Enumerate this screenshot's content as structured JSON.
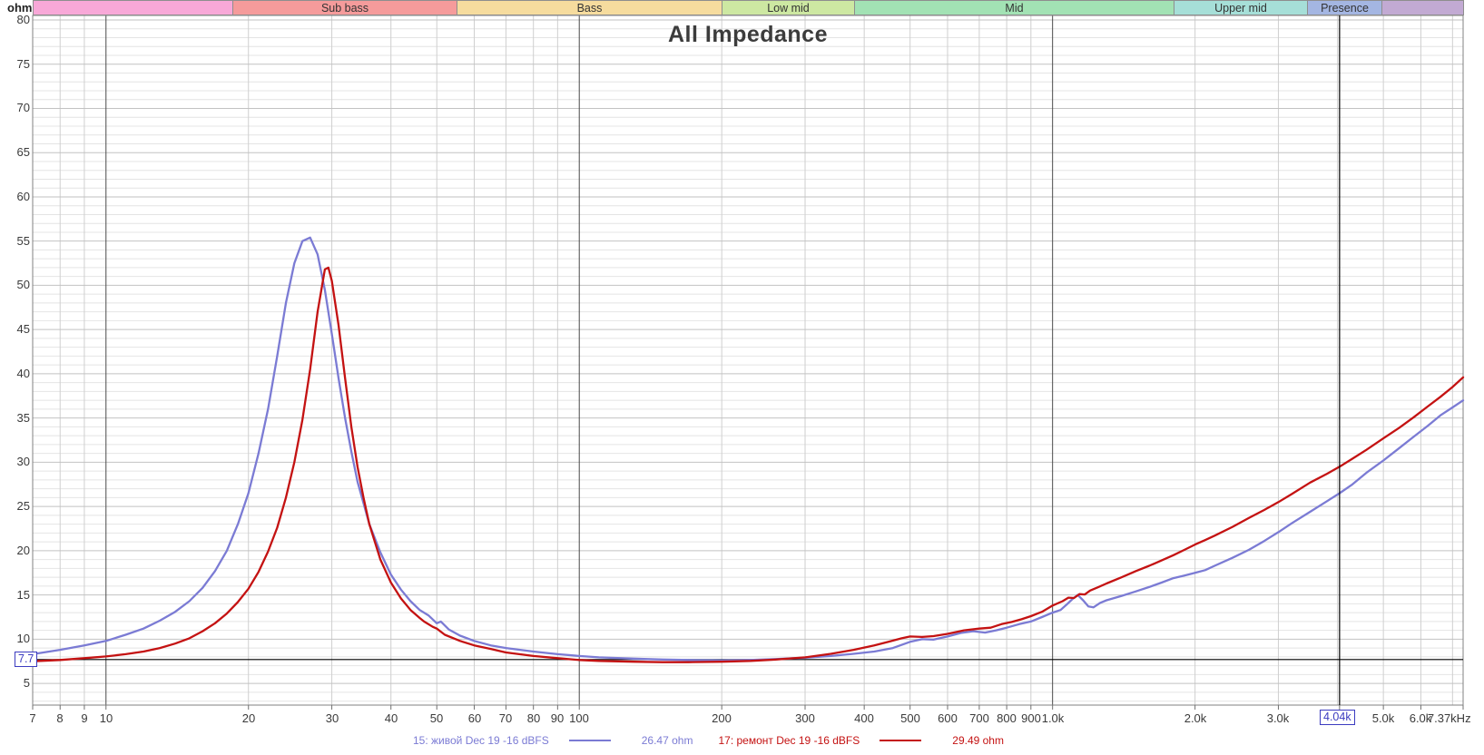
{
  "title": "All Impedance",
  "colors": {
    "series_live": "#7b7bd4",
    "series_repair": "#c41212",
    "accent_blue": "#3b3bc0",
    "cursor_line": "#000000",
    "marker_line": "#000000"
  },
  "y_axis": {
    "unit": "ohm",
    "ticks": [
      80,
      75,
      70,
      65,
      60,
      55,
      50,
      45,
      40,
      35,
      30,
      25,
      20,
      15,
      10,
      5
    ],
    "minor_step": 1,
    "major_step": 5
  },
  "x_axis": {
    "unit": "Hz",
    "ticks": [
      {
        "f": 7,
        "label": "7"
      },
      {
        "f": 8,
        "label": "8"
      },
      {
        "f": 9,
        "label": "9"
      },
      {
        "f": 10,
        "label": "10"
      },
      {
        "f": 20,
        "label": "20"
      },
      {
        "f": 30,
        "label": "30"
      },
      {
        "f": 40,
        "label": "40"
      },
      {
        "f": 50,
        "label": "50"
      },
      {
        "f": 60,
        "label": "60"
      },
      {
        "f": 70,
        "label": "70"
      },
      {
        "f": 80,
        "label": "80"
      },
      {
        "f": 90,
        "label": "90"
      },
      {
        "f": 100,
        "label": "100"
      },
      {
        "f": 200,
        "label": "200"
      },
      {
        "f": 300,
        "label": "300"
      },
      {
        "f": 400,
        "label": "400"
      },
      {
        "f": 500,
        "label": "500"
      },
      {
        "f": 600,
        "label": "600"
      },
      {
        "f": 700,
        "label": "700"
      },
      {
        "f": 800,
        "label": "800"
      },
      {
        "f": 900,
        "label": "900"
      },
      {
        "f": 1000,
        "label": "1.0k"
      },
      {
        "f": 2000,
        "label": "2.0k"
      },
      {
        "f": 3000,
        "label": "3.0k"
      },
      {
        "f": 4040,
        "label": "4.04k",
        "boxed": true
      },
      {
        "f": 5000,
        "label": "5.0k"
      },
      {
        "f": 6000,
        "label": "6.0k"
      },
      {
        "f": 7370,
        "label": "7.37kHz",
        "last": true
      }
    ],
    "minor_gridlines": [
      8,
      9,
      20,
      30,
      40,
      50,
      60,
      70,
      80,
      90,
      200,
      300,
      400,
      500,
      600,
      700,
      800,
      900,
      2000,
      3000,
      4000,
      5000,
      6000,
      7000
    ],
    "decade_gridlines": [
      10,
      100,
      1000
    ]
  },
  "bands": [
    {
      "label": "",
      "color": "#f8a8d8",
      "from": 7,
      "to": 18.5
    },
    {
      "label": "Sub bass",
      "color": "#f59b9b",
      "from": 18.5,
      "to": 55
    },
    {
      "label": "Bass",
      "color": "#f6dc9e",
      "from": 55,
      "to": 200
    },
    {
      "label": "Low mid",
      "color": "#cde8a2",
      "from": 200,
      "to": 380
    },
    {
      "label": "Mid",
      "color": "#a2e2b4",
      "from": 380,
      "to": 1800
    },
    {
      "label": "Upper mid",
      "color": "#a6dfd8",
      "from": 1800,
      "to": 3450
    },
    {
      "label": "Presence",
      "color": "#a4b6e2",
      "from": 3450,
      "to": 4950
    },
    {
      "label": "",
      "color": "#c2aad3",
      "from": 4950,
      "to": 7370
    }
  ],
  "marker": {
    "label": "7.7",
    "value": 7.7
  },
  "cursor": {
    "label": "4.04k",
    "freq": 4040
  },
  "legend": {
    "items": [
      {
        "label": "15: живой Dec 19 -16 dBFS",
        "value": "26.47 ohm",
        "color": "#7b7bd4"
      },
      {
        "label": "17: ремонт Dec 19 -16 dBFS",
        "value": "29.49 ohm",
        "color": "#c41212"
      }
    ]
  },
  "chart_data": {
    "type": "line",
    "xscale": "log",
    "title": "All Impedance",
    "xlabel": "Hz",
    "ylabel": "ohm",
    "xlim": [
      7,
      7370
    ],
    "ylim": [
      2.55,
      80.51
    ],
    "grid": true,
    "legend_position": "bottom",
    "series": [
      {
        "name": "15: живой Dec 19 -16 dBFS",
        "color": "#7b7bd4",
        "cursor_freq": 4040,
        "cursor_value": 26.47,
        "peak": {
          "freq": 27,
          "value": 55.4
        },
        "points": [
          [
            7,
            8.3
          ],
          [
            8,
            8.8
          ],
          [
            9,
            9.3
          ],
          [
            10,
            9.8
          ],
          [
            11,
            10.5
          ],
          [
            12,
            11.2
          ],
          [
            13,
            12.1
          ],
          [
            14,
            13.1
          ],
          [
            15,
            14.3
          ],
          [
            16,
            15.8
          ],
          [
            17,
            17.7
          ],
          [
            18,
            20.0
          ],
          [
            19,
            23.0
          ],
          [
            20,
            26.5
          ],
          [
            21,
            31.0
          ],
          [
            22,
            36.0
          ],
          [
            23,
            42.0
          ],
          [
            24,
            48.0
          ],
          [
            25,
            52.5
          ],
          [
            26,
            55.0
          ],
          [
            27,
            55.4
          ],
          [
            28,
            53.5
          ],
          [
            29,
            49.5
          ],
          [
            30,
            44.5
          ],
          [
            31,
            39.5
          ],
          [
            32,
            35.0
          ],
          [
            33,
            31.2
          ],
          [
            34,
            27.8
          ],
          [
            36,
            23.0
          ],
          [
            38,
            19.8
          ],
          [
            40,
            17.3
          ],
          [
            42,
            15.6
          ],
          [
            44,
            14.3
          ],
          [
            46,
            13.3
          ],
          [
            48,
            12.7
          ],
          [
            50,
            11.8
          ],
          [
            51,
            12.0
          ],
          [
            53,
            11.1
          ],
          [
            56,
            10.4
          ],
          [
            60,
            9.8
          ],
          [
            65,
            9.3
          ],
          [
            70,
            9.0
          ],
          [
            80,
            8.6
          ],
          [
            90,
            8.3
          ],
          [
            100,
            8.1
          ],
          [
            110,
            7.95
          ],
          [
            130,
            7.8
          ],
          [
            150,
            7.7
          ],
          [
            170,
            7.65
          ],
          [
            200,
            7.6
          ],
          [
            230,
            7.65
          ],
          [
            260,
            7.75
          ],
          [
            300,
            7.9
          ],
          [
            340,
            8.1
          ],
          [
            380,
            8.35
          ],
          [
            420,
            8.6
          ],
          [
            460,
            9.0
          ],
          [
            500,
            9.7
          ],
          [
            530,
            10.0
          ],
          [
            560,
            9.95
          ],
          [
            600,
            10.3
          ],
          [
            640,
            10.7
          ],
          [
            680,
            10.9
          ],
          [
            720,
            10.75
          ],
          [
            760,
            11.0
          ],
          [
            800,
            11.3
          ],
          [
            850,
            11.7
          ],
          [
            900,
            12.0
          ],
          [
            950,
            12.5
          ],
          [
            1000,
            13.0
          ],
          [
            1040,
            13.3
          ],
          [
            1070,
            13.9
          ],
          [
            1100,
            14.5
          ],
          [
            1130,
            15.0
          ],
          [
            1160,
            14.4
          ],
          [
            1190,
            13.7
          ],
          [
            1220,
            13.6
          ],
          [
            1260,
            14.1
          ],
          [
            1300,
            14.4
          ],
          [
            1400,
            14.9
          ],
          [
            1500,
            15.4
          ],
          [
            1600,
            15.9
          ],
          [
            1700,
            16.4
          ],
          [
            1800,
            16.9
          ],
          [
            1900,
            17.2
          ],
          [
            2000,
            17.5
          ],
          [
            2100,
            17.8
          ],
          [
            2200,
            18.3
          ],
          [
            2400,
            19.2
          ],
          [
            2600,
            20.1
          ],
          [
            2800,
            21.1
          ],
          [
            3000,
            22.1
          ],
          [
            3200,
            23.1
          ],
          [
            3500,
            24.4
          ],
          [
            3800,
            25.6
          ],
          [
            4040,
            26.5
          ],
          [
            4300,
            27.5
          ],
          [
            4600,
            28.8
          ],
          [
            5000,
            30.2
          ],
          [
            5400,
            31.6
          ],
          [
            5800,
            32.9
          ],
          [
            6200,
            34.1
          ],
          [
            6600,
            35.3
          ],
          [
            7000,
            36.2
          ],
          [
            7370,
            37.0
          ]
        ]
      },
      {
        "name": "17: ремонт Dec 19 -16 dBFS",
        "color": "#c41212",
        "cursor_freq": 4040,
        "cursor_value": 29.49,
        "peak": {
          "freq": 29.3,
          "value": 52.0
        },
        "points": [
          [
            7,
            7.5
          ],
          [
            8,
            7.65
          ],
          [
            9,
            7.85
          ],
          [
            10,
            8.05
          ],
          [
            11,
            8.3
          ],
          [
            12,
            8.6
          ],
          [
            13,
            9.0
          ],
          [
            14,
            9.5
          ],
          [
            15,
            10.1
          ],
          [
            16,
            10.9
          ],
          [
            17,
            11.8
          ],
          [
            18,
            12.9
          ],
          [
            19,
            14.2
          ],
          [
            20,
            15.7
          ],
          [
            21,
            17.6
          ],
          [
            22,
            19.9
          ],
          [
            23,
            22.6
          ],
          [
            24,
            26.0
          ],
          [
            25,
            30.0
          ],
          [
            26,
            34.8
          ],
          [
            27,
            40.5
          ],
          [
            28,
            47.0
          ],
          [
            29,
            51.8
          ],
          [
            29.5,
            52.0
          ],
          [
            30,
            50.5
          ],
          [
            31,
            45.5
          ],
          [
            32,
            39.5
          ],
          [
            33,
            34.0
          ],
          [
            34,
            29.5
          ],
          [
            35,
            26.0
          ],
          [
            36,
            23.0
          ],
          [
            38,
            19.0
          ],
          [
            40,
            16.4
          ],
          [
            42,
            14.6
          ],
          [
            44,
            13.3
          ],
          [
            46,
            12.4
          ],
          [
            47,
            12.0
          ],
          [
            49,
            11.4
          ],
          [
            50,
            11.2
          ],
          [
            52,
            10.5
          ],
          [
            56,
            9.8
          ],
          [
            60,
            9.3
          ],
          [
            65,
            8.9
          ],
          [
            70,
            8.5
          ],
          [
            80,
            8.1
          ],
          [
            90,
            7.85
          ],
          [
            100,
            7.65
          ],
          [
            110,
            7.55
          ],
          [
            130,
            7.45
          ],
          [
            150,
            7.4
          ],
          [
            170,
            7.4
          ],
          [
            200,
            7.45
          ],
          [
            230,
            7.55
          ],
          [
            260,
            7.7
          ],
          [
            300,
            7.95
          ],
          [
            340,
            8.35
          ],
          [
            380,
            8.8
          ],
          [
            420,
            9.3
          ],
          [
            450,
            9.7
          ],
          [
            480,
            10.1
          ],
          [
            500,
            10.3
          ],
          [
            530,
            10.25
          ],
          [
            560,
            10.35
          ],
          [
            600,
            10.6
          ],
          [
            650,
            11.0
          ],
          [
            700,
            11.2
          ],
          [
            740,
            11.3
          ],
          [
            780,
            11.7
          ],
          [
            820,
            11.95
          ],
          [
            860,
            12.25
          ],
          [
            900,
            12.6
          ],
          [
            950,
            13.1
          ],
          [
            1000,
            13.8
          ],
          [
            1050,
            14.3
          ],
          [
            1080,
            14.7
          ],
          [
            1110,
            14.65
          ],
          [
            1140,
            15.1
          ],
          [
            1170,
            15.05
          ],
          [
            1200,
            15.5
          ],
          [
            1250,
            15.9
          ],
          [
            1300,
            16.3
          ],
          [
            1400,
            17.0
          ],
          [
            1500,
            17.7
          ],
          [
            1600,
            18.3
          ],
          [
            1700,
            18.9
          ],
          [
            1800,
            19.5
          ],
          [
            1900,
            20.1
          ],
          [
            2000,
            20.7
          ],
          [
            2100,
            21.2
          ],
          [
            2200,
            21.7
          ],
          [
            2400,
            22.7
          ],
          [
            2600,
            23.7
          ],
          [
            2800,
            24.6
          ],
          [
            3000,
            25.5
          ],
          [
            3200,
            26.4
          ],
          [
            3500,
            27.7
          ],
          [
            3800,
            28.7
          ],
          [
            4040,
            29.5
          ],
          [
            4300,
            30.4
          ],
          [
            4600,
            31.4
          ],
          [
            5000,
            32.7
          ],
          [
            5400,
            33.9
          ],
          [
            5800,
            35.1
          ],
          [
            6200,
            36.3
          ],
          [
            6600,
            37.4
          ],
          [
            7000,
            38.5
          ],
          [
            7370,
            39.6
          ]
        ]
      }
    ]
  }
}
